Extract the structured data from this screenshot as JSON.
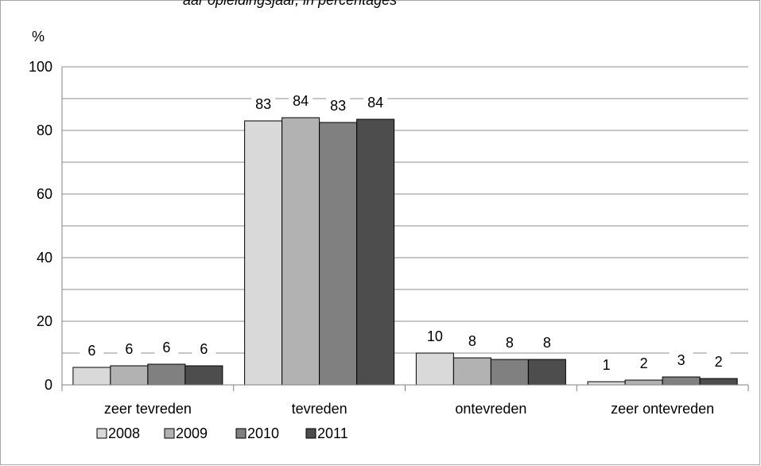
{
  "top_text": "aar opleidingsjaar, in percentages",
  "chart_data": {
    "type": "bar",
    "unit_label": "%",
    "categories": [
      "zeer tevreden",
      "tevreden",
      "ontevreden",
      "zeer ontevreden"
    ],
    "series": [
      {
        "name": "2008",
        "values": [
          5.5,
          83,
          10,
          1
        ],
        "labels": [
          "6",
          "83",
          "10",
          "1"
        ],
        "color": "#d9d9d9"
      },
      {
        "name": "2009",
        "values": [
          6,
          84,
          8.5,
          1.5
        ],
        "labels": [
          "6",
          "84",
          "8",
          "2"
        ],
        "color": "#b2b2b2"
      },
      {
        "name": "2010",
        "values": [
          6.5,
          82.5,
          8,
          2.5
        ],
        "labels": [
          "6",
          "83",
          "8",
          "3"
        ],
        "color": "#808080"
      },
      {
        "name": "2011",
        "values": [
          6,
          83.5,
          8,
          2
        ],
        "labels": [
          "6",
          "84",
          "8",
          "2"
        ],
        "color": "#4d4d4d"
      }
    ],
    "ylim": [
      0,
      100
    ],
    "yticks": [
      "0",
      "20",
      "40",
      "60",
      "80",
      "100"
    ],
    "grid": true,
    "legend_position": "bottom-left"
  }
}
